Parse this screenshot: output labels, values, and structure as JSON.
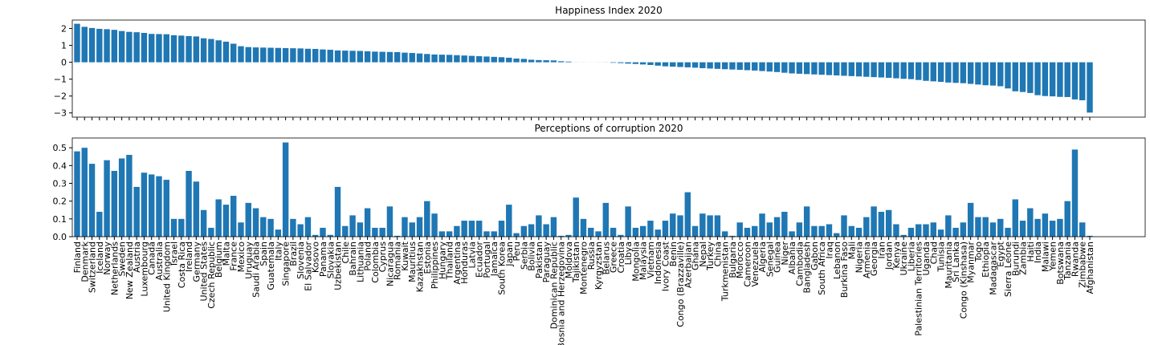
{
  "chart_data": [
    {
      "type": "bar",
      "title": "Happiness Index 2020",
      "color": "#1f77b4",
      "ylim": [
        -3.25,
        2.5
      ],
      "yticks": [
        {
          "value": -3,
          "label": "−3"
        },
        {
          "value": -2,
          "label": "−2"
        },
        {
          "value": -1,
          "label": "−1"
        },
        0,
        1,
        2
      ],
      "values": [
        2.28,
        2.1,
        2.03,
        1.98,
        1.96,
        1.92,
        1.85,
        1.8,
        1.78,
        1.74,
        1.68,
        1.67,
        1.66,
        1.6,
        1.58,
        1.55,
        1.53,
        1.42,
        1.38,
        1.3,
        1.22,
        1.1,
        0.95,
        0.9,
        0.88,
        0.87,
        0.86,
        0.85,
        0.84,
        0.83,
        0.82,
        0.8,
        0.79,
        0.76,
        0.74,
        0.7,
        0.69,
        0.68,
        0.67,
        0.65,
        0.63,
        0.62,
        0.61,
        0.6,
        0.57,
        0.55,
        0.52,
        0.49,
        0.46,
        0.45,
        0.44,
        0.42,
        0.4,
        0.38,
        0.36,
        0.34,
        0.32,
        0.3,
        0.27,
        0.22,
        0.2,
        0.15,
        0.13,
        0.12,
        0.11,
        0.06,
        0.04,
        0.005,
        0.003,
        -0.002,
        -0.004,
        -0.006,
        -0.03,
        -0.05,
        -0.08,
        -0.1,
        -0.13,
        -0.16,
        -0.2,
        -0.24,
        -0.26,
        -0.28,
        -0.3,
        -0.32,
        -0.35,
        -0.37,
        -0.39,
        -0.41,
        -0.43,
        -0.45,
        -0.47,
        -0.49,
        -0.52,
        -0.55,
        -0.58,
        -0.62,
        -0.66,
        -0.68,
        -0.7,
        -0.72,
        -0.74,
        -0.76,
        -0.78,
        -0.8,
        -0.82,
        -0.84,
        -0.86,
        -0.88,
        -0.9,
        -0.92,
        -0.95,
        -0.98,
        -1.0,
        -1.05,
        -1.1,
        -1.13,
        -1.16,
        -1.2,
        -1.22,
        -1.24,
        -1.28,
        -1.32,
        -1.36,
        -1.38,
        -1.42,
        -1.55,
        -1.72,
        -1.76,
        -1.82,
        -1.95,
        -2.0,
        -2.02,
        -2.05,
        -2.06,
        -2.2,
        -2.25,
        -2.98
      ]
    },
    {
      "type": "bar",
      "title": "Perceptions of corruption 2020",
      "color": "#1f77b4",
      "ylim": [
        0,
        0.555
      ],
      "yticks": [
        {
          "value": 0,
          "label": "0.0"
        },
        0.1,
        0.2,
        0.3,
        0.4,
        0.5
      ],
      "categories": [
        "Finland",
        "Denmark",
        "Switzerland",
        "Iceland",
        "Norway",
        "Netherlands",
        "Sweden",
        "New Zealand",
        "Austria",
        "Luxembourg",
        "Canada",
        "Australia",
        "United Kingdom",
        "Israel",
        "Costa Rica",
        "Ireland",
        "Germany",
        "United States",
        "Czech Republic",
        "Belgium",
        "Malta",
        "France",
        "Mexico",
        "Uruguay",
        "Saudi Arabia",
        "Spain",
        "Guatemala",
        "Italy",
        "Singapore",
        "Brazil",
        "Slovenia",
        "El Salvador",
        "Kosovo",
        "Panama",
        "Slovakia",
        "Uzbekistan",
        "Chile",
        "Bahrain",
        "Lithuania",
        "Poland",
        "Colombia",
        "Cyprus",
        "Nicaragua",
        "Romania",
        "Kuwait",
        "Mauritius",
        "Kazakhstan",
        "Estonia",
        "Philippines",
        "Hungary",
        "Thailand",
        "Argentina",
        "Honduras",
        "Latvia",
        "Ecuador",
        "Portugal",
        "Jamaica",
        "South Korea",
        "Japan",
        "Peru",
        "Serbia",
        "Bolivia",
        "Pakistan",
        "Paraguay",
        "Dominican Republic",
        "Bosnia and Herzegovina",
        "Moldova",
        "Tajikistan",
        "Montenegro",
        "Russia",
        "Kyrgyzstan",
        "Belarus",
        "Greece",
        "Croatia",
        "Libya",
        "Mongolia",
        "Malaysia",
        "Vietnam",
        "Indonesia",
        "Ivory Coast",
        "Benin",
        "Congo (Brazzaville)",
        "Azerbaijan",
        "Ghana",
        "Nepal",
        "Turkey",
        "China",
        "Turkmenistan",
        "Bulgaria",
        "Morocco",
        "Cameroon",
        "Venezuela",
        "Algeria",
        "Senegal",
        "Guinea",
        "Niger",
        "Albania",
        "Cambodia",
        "Bangladesh",
        "Gabon",
        "South Africa",
        "Iraq",
        "Lebanon",
        "Burkina Faso",
        "Mali",
        "Nigeria",
        "Armenia",
        "Georgia",
        "Iran",
        "Jordan",
        "Kenya",
        "Ukraine",
        "Liberia",
        "Palestinian Territories",
        "Uganda",
        "Chad",
        "Tunisia",
        "Mauritania",
        "Sri Lanka",
        "Congo (Kinshasa)",
        "Myanmar",
        "Togo",
        "Ethiopia",
        "Madagascar",
        "Egypt",
        "Sierra Leone",
        "Burundi",
        "Zambia",
        "Haiti",
        "India",
        "Malawi",
        "Yemen",
        "Botswana",
        "Tanzania",
        "Rwanda",
        "Zimbabwe",
        "Afghanistan"
      ],
      "values": [
        0.48,
        0.5,
        0.41,
        0.14,
        0.43,
        0.37,
        0.44,
        0.46,
        0.28,
        0.36,
        0.35,
        0.34,
        0.32,
        0.1,
        0.1,
        0.37,
        0.31,
        0.15,
        0.05,
        0.21,
        0.18,
        0.23,
        0.08,
        0.19,
        0.16,
        0.11,
        0.1,
        0.04,
        0.53,
        0.1,
        0.07,
        0.11,
        0.01,
        0.05,
        0.01,
        0.28,
        0.06,
        0.12,
        0.08,
        0.16,
        0.05,
        0.05,
        0.17,
        0.005,
        0.11,
        0.08,
        0.11,
        0.2,
        0.13,
        0.03,
        0.03,
        0.06,
        0.09,
        0.09,
        0.09,
        0.03,
        0.03,
        0.09,
        0.18,
        0.02,
        0.06,
        0.07,
        0.12,
        0.07,
        0.11,
        0.005,
        0.01,
        0.22,
        0.1,
        0.05,
        0.03,
        0.19,
        0.05,
        0.01,
        0.17,
        0.05,
        0.06,
        0.09,
        0.04,
        0.09,
        0.13,
        0.12,
        0.25,
        0.06,
        0.13,
        0.12,
        0.12,
        0.03,
        0.005,
        0.08,
        0.05,
        0.06,
        0.13,
        0.08,
        0.11,
        0.14,
        0.03,
        0.08,
        0.17,
        0.06,
        0.06,
        0.07,
        0.02,
        0.12,
        0.06,
        0.05,
        0.11,
        0.17,
        0.14,
        0.15,
        0.07,
        0.01,
        0.05,
        0.07,
        0.07,
        0.08,
        0.04,
        0.12,
        0.05,
        0.08,
        0.19,
        0.11,
        0.11,
        0.08,
        0.1,
        0.05,
        0.21,
        0.09,
        0.16,
        0.1,
        0.13,
        0.09,
        0.1,
        0.2,
        0.49,
        0.08,
        0.005
      ]
    }
  ]
}
